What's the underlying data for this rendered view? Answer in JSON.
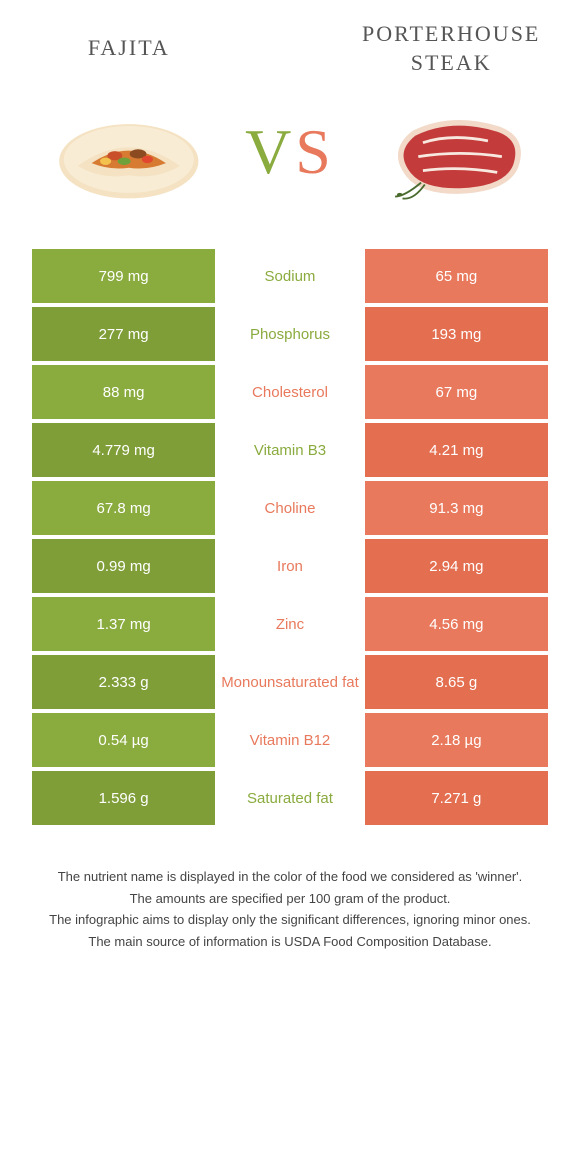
{
  "colors": {
    "left": "#8aab3e",
    "right": "#e8795c",
    "left_alt": "#7f9e38",
    "right_alt": "#e36e50",
    "vs_v": "#8aab3e",
    "vs_s": "#e8795c",
    "title_text": "#555555",
    "footer_text": "#444444"
  },
  "header": {
    "left_title": "FAJITA",
    "right_title_line1": "PORTERHOUSE",
    "right_title_line2": "STEAK",
    "vs_v": "V",
    "vs_s": "S"
  },
  "table": {
    "rows": [
      {
        "left": "799 mg",
        "label": "Sodium",
        "right": "65 mg",
        "winner": "left"
      },
      {
        "left": "277 mg",
        "label": "Phosphorus",
        "right": "193 mg",
        "winner": "left"
      },
      {
        "left": "88 mg",
        "label": "Cholesterol",
        "right": "67 mg",
        "winner": "right"
      },
      {
        "left": "4.779 mg",
        "label": "Vitamin B3",
        "right": "4.21 mg",
        "winner": "left"
      },
      {
        "left": "67.8 mg",
        "label": "Choline",
        "right": "91.3 mg",
        "winner": "right"
      },
      {
        "left": "0.99 mg",
        "label": "Iron",
        "right": "2.94 mg",
        "winner": "right"
      },
      {
        "left": "1.37 mg",
        "label": "Zinc",
        "right": "4.56 mg",
        "winner": "right"
      },
      {
        "left": "2.333 g",
        "label": "Monounsaturated fat",
        "right": "8.65 g",
        "winner": "right"
      },
      {
        "left": "0.54 µg",
        "label": "Vitamin B12",
        "right": "2.18 µg",
        "winner": "right"
      },
      {
        "left": "1.596 g",
        "label": "Saturated fat",
        "right": "7.271 g",
        "winner": "left"
      }
    ]
  },
  "footer": {
    "line1": "The nutrient name is displayed in the color of the food we considered as 'winner'.",
    "line2": "The amounts are specified per 100 gram of the product.",
    "line3": "The infographic aims to display only the significant differences, ignoring minor ones.",
    "line4": "The main source of information is USDA Food Composition Database."
  }
}
